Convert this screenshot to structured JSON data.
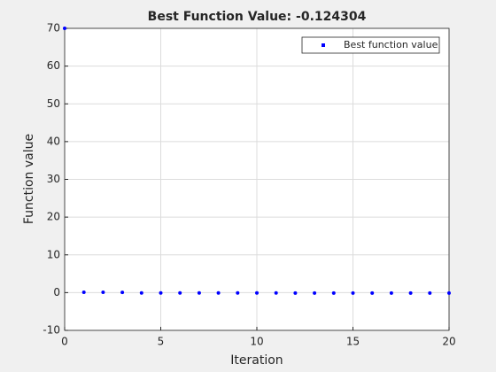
{
  "chart_data": {
    "type": "scatter",
    "title": "Best Function Value: -0.124304",
    "xlabel": "Iteration",
    "ylabel": "Function value",
    "series": [
      {
        "name": "Best function value",
        "color": "#0000ff",
        "x": [
          0,
          1,
          2,
          3,
          4,
          5,
          6,
          7,
          8,
          9,
          10,
          11,
          12,
          13,
          14,
          15,
          16,
          17,
          18,
          19,
          20
        ],
        "values": [
          70,
          0.1,
          0.1,
          0.05,
          -0.1,
          -0.1,
          -0.1,
          -0.1,
          -0.1,
          -0.1,
          -0.1,
          -0.1,
          -0.12,
          -0.12,
          -0.12,
          -0.12,
          -0.12,
          -0.12,
          -0.124,
          -0.124,
          -0.124304
        ]
      }
    ],
    "xlim": [
      0,
      20
    ],
    "xticks": [
      0,
      5,
      10,
      15,
      20
    ],
    "ylim": [
      -10,
      70
    ],
    "yticks": [
      -10,
      0,
      10,
      20,
      30,
      40,
      50,
      60,
      70
    ],
    "grid": true,
    "legend": "top-right"
  }
}
